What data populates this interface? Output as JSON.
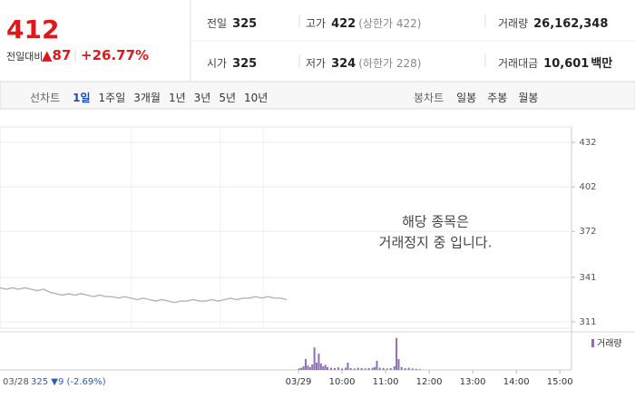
{
  "quote": {
    "price": "412",
    "change_label": "전일대비",
    "change": "▲87",
    "change_pct": "+26.77%"
  },
  "stats": [
    {
      "label": "전일",
      "value": "325"
    },
    {
      "label": "고가",
      "value": "422",
      "note": "(상한가 422)"
    },
    {
      "label": "거래량",
      "value": "26,162,348"
    },
    {
      "label": "시가",
      "value": "325"
    },
    {
      "label": "저가",
      "value": "324",
      "note": "(하한가 228)"
    },
    {
      "label": "거래대금",
      "value": "10,601",
      "unit": "백만"
    }
  ],
  "tabs": {
    "line_label": "선차트",
    "line": [
      "1일",
      "1주일",
      "3개월",
      "1년",
      "3년",
      "5년",
      "10년"
    ],
    "active": 0,
    "candle_label": "봉차트",
    "candle": [
      "일봉",
      "주봉",
      "월봉"
    ]
  },
  "chart_data": {
    "type": "line",
    "notice": [
      "해당 종목은",
      "거래정지 중 입니다."
    ],
    "color": "#b4b4b4",
    "values": [
      334,
      333,
      334,
      333,
      334,
      333,
      332,
      333,
      331,
      330,
      329,
      330,
      329,
      330,
      329,
      328,
      329,
      328,
      328,
      327,
      328,
      327,
      326,
      327,
      326,
      325,
      326,
      325,
      324,
      325,
      325,
      326,
      325,
      325,
      326,
      325,
      326,
      327,
      326,
      327,
      327,
      328,
      327,
      328,
      327,
      327,
      326
    ],
    "ylim": [
      311,
      432
    ],
    "yticks": [
      311,
      341,
      372,
      402,
      432
    ],
    "grid": true,
    "prev_day": "03/28",
    "prev_summary": "325 ▼9 (-2.69%)",
    "xlim": [
      129,
      916
    ],
    "xticks": [
      {
        "value": 540,
        "label": "03/29"
      },
      {
        "value": 600,
        "label": "10:00"
      },
      {
        "value": 660,
        "label": "11:00"
      },
      {
        "value": 720,
        "label": "12:00"
      },
      {
        "value": 780,
        "label": "13:00"
      },
      {
        "value": 840,
        "label": "14:00"
      },
      {
        "value": 900,
        "label": "15:00"
      }
    ],
    "volume": {
      "name": "거래량",
      "color": "#8e6fb5",
      "ylim": [
        0,
        100
      ],
      "x": [
        541,
        544,
        547,
        550,
        553,
        556,
        559,
        562,
        565,
        568,
        571,
        574,
        577,
        580,
        585,
        590,
        595,
        600,
        605,
        608,
        612,
        617,
        622,
        627,
        632,
        637,
        642,
        645,
        648,
        652,
        657,
        662,
        667,
        672,
        675,
        678,
        682,
        687,
        692,
        697,
        702,
        707
      ],
      "values": [
        4,
        6,
        10,
        30,
        12,
        8,
        15,
        62,
        20,
        45,
        18,
        10,
        14,
        8,
        6,
        5,
        7,
        4,
        6,
        20,
        5,
        4,
        6,
        5,
        4,
        5,
        6,
        8,
        25,
        6,
        5,
        4,
        5,
        10,
        88,
        30,
        8,
        5,
        6,
        4,
        3,
        2
      ]
    }
  }
}
